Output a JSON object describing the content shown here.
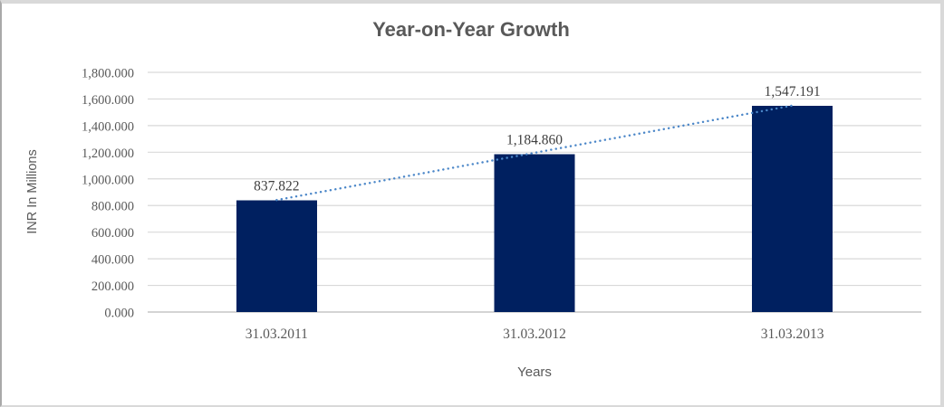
{
  "chart_data": {
    "type": "bar",
    "title": "Year-on-Year Growth",
    "xlabel": "Years",
    "ylabel": "INR In Millions",
    "categories": [
      "31.03.2011",
      "31.03.2012",
      "31.03.2013"
    ],
    "values": [
      837.822,
      1184.86,
      1547.191
    ],
    "value_labels": [
      "837.822",
      "1,184.860",
      "1,547.191"
    ],
    "y_ticks": [
      "0.000",
      "200.000",
      "400.000",
      "600.000",
      "800.000",
      "1,000.000",
      "1,200.000",
      "1,400.000",
      "1,600.000",
      "1,800.000"
    ],
    "ylim": [
      0,
      1800
    ],
    "grid": true,
    "legend": false,
    "trendline": {
      "type": "linear",
      "style": "dotted"
    },
    "colors": {
      "bar": "#002060",
      "trendline": "#4a86c8",
      "gridline": "#d9d9d9",
      "axis_line": "#c6c6c6",
      "title_text": "#595959",
      "tick_text": "#595959",
      "data_label_text": "#3f3f3f"
    }
  }
}
